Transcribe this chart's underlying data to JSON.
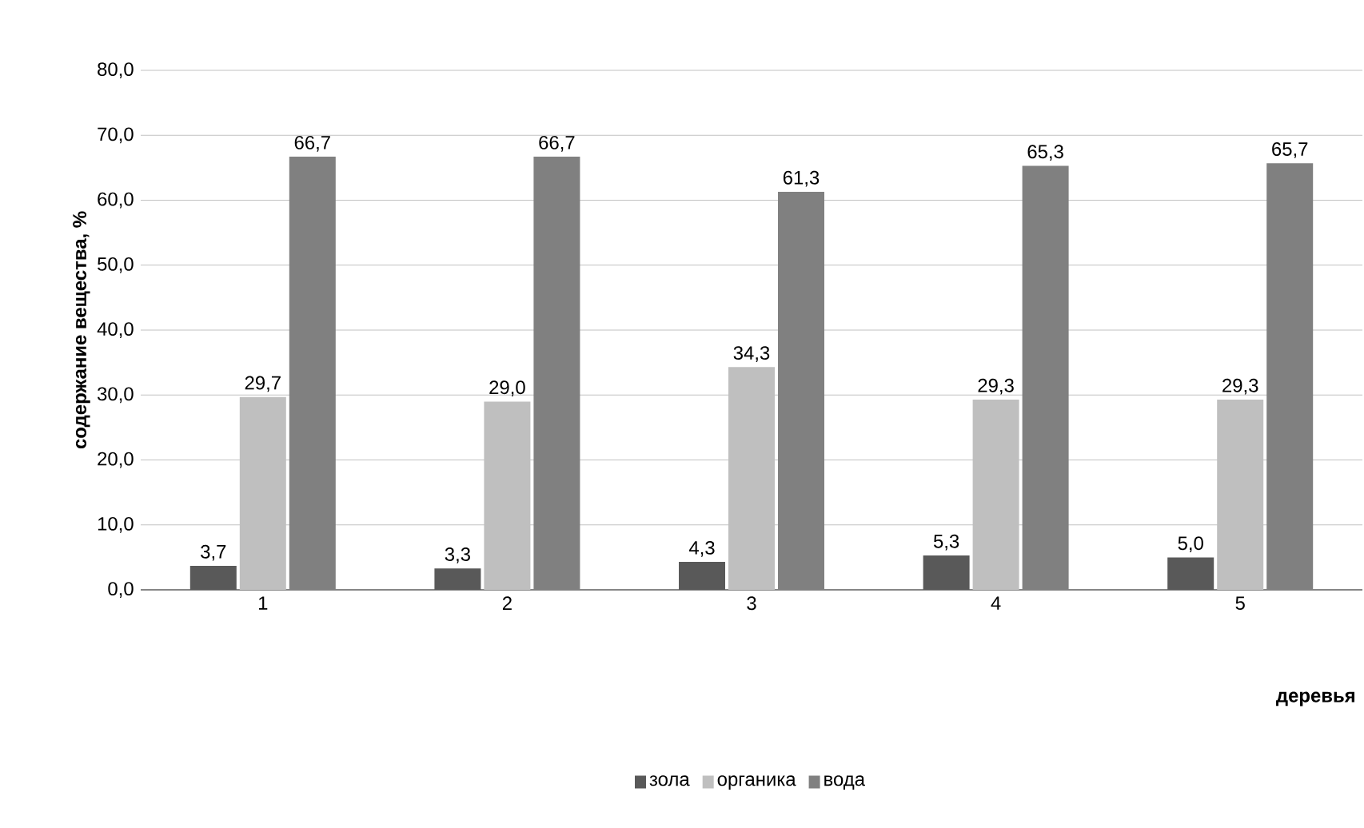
{
  "chart_data": {
    "type": "bar",
    "xlabel": "деревья",
    "ylabel": "содержание вещества, %",
    "categories": [
      "1",
      "2",
      "3",
      "4",
      "5"
    ],
    "series": [
      {
        "name": "зола",
        "color": "#595959",
        "values": [
          3.7,
          3.3,
          4.3,
          5.3,
          5.0
        ],
        "value_labels": [
          "3,7",
          "3,3",
          "4,3",
          "5,3",
          "5,0"
        ]
      },
      {
        "name": "органика",
        "color": "#bfbfbf",
        "values": [
          29.7,
          29.0,
          34.3,
          29.3,
          29.3
        ],
        "value_labels": [
          "29,7",
          "29,0",
          "34,3",
          "29,3",
          "29,3"
        ]
      },
      {
        "name": "вода",
        "color": "#808080",
        "values": [
          66.7,
          66.7,
          61.3,
          65.3,
          65.7
        ],
        "value_labels": [
          "66,7",
          "66,7",
          "61,3",
          "65,3",
          "65,7"
        ]
      }
    ],
    "ylim": [
      0,
      80
    ],
    "yticks": [
      {
        "value": 0,
        "label": "0,0"
      },
      {
        "value": 10,
        "label": "10,0"
      },
      {
        "value": 20,
        "label": "20,0"
      },
      {
        "value": 30,
        "label": "30,0"
      },
      {
        "value": 40,
        "label": "40,0"
      },
      {
        "value": 50,
        "label": "50,0"
      },
      {
        "value": 60,
        "label": "60,0"
      },
      {
        "value": 70,
        "label": "70,0"
      },
      {
        "value": 80,
        "label": "80,0"
      }
    ],
    "grid": "y",
    "legend": "bottom"
  }
}
